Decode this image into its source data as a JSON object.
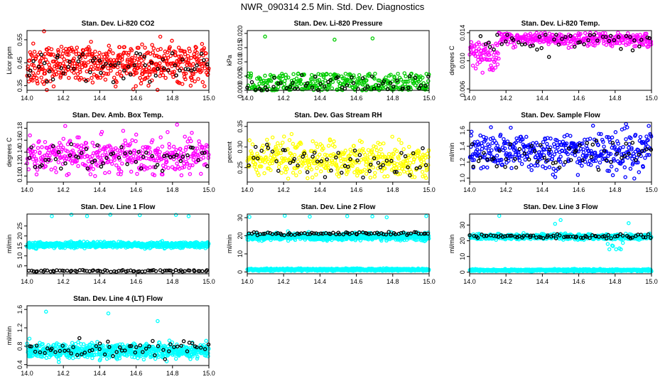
{
  "page_title": "NWR_090314  2.5 Min. Std. Dev. Diagnostics",
  "colors": {
    "ink": "#000000",
    "red": "#ff0000",
    "green": "#00cc00",
    "magenta": "#ff00ff",
    "yellow": "#ffff00",
    "blue": "#0000ff",
    "cyan": "#00ffff"
  },
  "chart_data": [
    {
      "type": "scatter",
      "title": "Stan. Dev. Li-820 CO2",
      "ylabel": "Licor ppm",
      "xlim": [
        14.0,
        15.0
      ],
      "ylim": [
        0.33,
        0.59
      ],
      "xticks": [
        "14.0",
        "14.2",
        "14.4",
        "14.6",
        "14.8",
        "15.0"
      ],
      "yticks": [
        "0.35",
        "0.45",
        "0.55"
      ],
      "ytick_values": [
        0.35,
        0.45,
        0.55
      ],
      "series": [
        {
          "name": "all",
          "color": "#ff0000",
          "bands": [
            {
              "n": 480,
              "center": 0.44,
              "spread": 0.045,
              "ymin": 0.33,
              "ymax": 0.52
            },
            {
              "n": 25,
              "center": 0.5,
              "spread": 0.03,
              "ymin": 0.47,
              "ymax": 0.59
            }
          ]
        },
        {
          "name": "selected",
          "color": "#000000",
          "bands": [
            {
              "n": 60,
              "center": 0.43,
              "spread": 0.04,
              "ymin": 0.36,
              "ymax": 0.5
            }
          ]
        }
      ]
    },
    {
      "type": "scatter",
      "title": "Stan. Dev. Li-820 Pressure",
      "ylabel": "kPa",
      "xlim": [
        14.0,
        15.0
      ],
      "ylim": [
        0.0,
        0.021
      ],
      "xticks": [
        "14.0",
        "14.2",
        "14.4",
        "14.6",
        "14.8",
        "15.0"
      ],
      "yticks": [
        "0.000",
        "0.005",
        "0.010",
        "0.015",
        "0.020"
      ],
      "ytick_values": [
        0.0,
        0.005,
        0.01,
        0.015,
        0.02
      ],
      "series": [
        {
          "name": "all",
          "color": "#00cc00",
          "bands": [
            {
              "n": 340,
              "center": 0.0025,
              "spread": 0.0025,
              "ymin": 0.0,
              "ymax": 0.006
            },
            {
              "n": 3,
              "center": 0.0185,
              "spread": 0.001,
              "ymin": 0.0175,
              "ymax": 0.0195
            }
          ]
        },
        {
          "name": "selected",
          "color": "#000000",
          "bands": [
            {
              "n": 55,
              "center": 0.0015,
              "spread": 0.0025,
              "ymin": 0.0,
              "ymax": 0.006
            }
          ]
        }
      ]
    },
    {
      "type": "scatter",
      "title": "Stan. Dev. Li-820 Temp.",
      "ylabel": "degrees C",
      "xlim": [
        14.0,
        15.0
      ],
      "ylim": [
        0.0058,
        0.0143
      ],
      "xticks": [
        "14.0",
        "14.2",
        "14.4",
        "14.6",
        "14.8",
        "15.0"
      ],
      "yticks": [
        "0.006",
        "0.010",
        "0.014"
      ],
      "ytick_values": [
        0.006,
        0.01,
        0.014
      ],
      "series": [
        {
          "name": "all",
          "color": "#ff00ff",
          "bands": [
            {
              "n": 70,
              "center": 0.0105,
              "spread": 0.0012,
              "ymin": 0.0075,
              "ymax": 0.0128,
              "xmin": 14.0,
              "xmax": 14.16
            },
            {
              "n": 330,
              "center": 0.0131,
              "spread": 0.0005,
              "ymin": 0.0118,
              "ymax": 0.014,
              "xmin": 14.16,
              "xmax": 15.0
            }
          ]
        },
        {
          "name": "selected",
          "color": "#000000",
          "bands": [
            {
              "n": 50,
              "center": 0.0128,
              "spread": 0.0006,
              "ymin": 0.0095,
              "ymax": 0.0138,
              "xmin": 14.05,
              "xmax": 15.0
            }
          ]
        }
      ]
    },
    {
      "type": "scatter",
      "title": "Stan. Dev. Amb. Box Temp.",
      "ylabel": "degrees C",
      "xlim": [
        14.0,
        15.0
      ],
      "ylim": [
        0.09,
        0.19
      ],
      "xticks": [
        "14.0",
        "14.2",
        "14.4",
        "14.6",
        "14.8",
        "15.0"
      ],
      "yticks": [
        "0.10",
        "0.12",
        "0.14",
        "0.16",
        "0.18"
      ],
      "ytick_values": [
        0.1,
        0.12,
        0.14,
        0.16,
        0.18
      ],
      "series": [
        {
          "name": "all",
          "color": "#ff00ff",
          "bands": [
            {
              "n": 400,
              "center": 0.135,
              "spread": 0.015,
              "ymin": 0.1,
              "ymax": 0.19
            }
          ]
        },
        {
          "name": "selected",
          "color": "#000000",
          "bands": [
            {
              "n": 55,
              "center": 0.13,
              "spread": 0.012,
              "ymin": 0.105,
              "ymax": 0.165
            }
          ]
        }
      ]
    },
    {
      "type": "scatter",
      "title": "Stan. Dev. Gas Stream RH",
      "ylabel": "percent",
      "xlim": [
        14.0,
        15.0
      ],
      "ylim": [
        0.215,
        0.36
      ],
      "xticks": [
        "14.0",
        "14.2",
        "14.4",
        "14.6",
        "14.8",
        "15.0"
      ],
      "yticks": [
        "0.25",
        "0.30",
        "0.35"
      ],
      "ytick_values": [
        0.25,
        0.3,
        0.35
      ],
      "series": [
        {
          "name": "all",
          "color": "#ffff00",
          "bands": [
            {
              "n": 420,
              "center": 0.27,
              "spread": 0.022,
              "ymin": 0.22,
              "ymax": 0.36
            }
          ]
        },
        {
          "name": "selected",
          "color": "#000000",
          "bands": [
            {
              "n": 55,
              "center": 0.265,
              "spread": 0.018,
              "ymin": 0.225,
              "ymax": 0.31
            }
          ]
        }
      ]
    },
    {
      "type": "scatter",
      "title": "Stan. Dev. Sample Flow",
      "ylabel": "ml/min",
      "xlim": [
        14.0,
        15.0
      ],
      "ylim": [
        0.95,
        1.7
      ],
      "xticks": [
        "14.0",
        "14.2",
        "14.4",
        "14.6",
        "14.8",
        "15.0"
      ],
      "yticks": [
        "1.0",
        "1.2",
        "1.4",
        "1.6"
      ],
      "ytick_values": [
        1.0,
        1.2,
        1.4,
        1.6
      ],
      "series": [
        {
          "name": "all",
          "color": "#0000ff",
          "bands": [
            {
              "n": 420,
              "center": 1.33,
              "spread": 0.12,
              "ymin": 0.96,
              "ymax": 1.68
            }
          ]
        },
        {
          "name": "selected",
          "color": "#000000",
          "bands": [
            {
              "n": 55,
              "center": 1.3,
              "spread": 0.1,
              "ymin": 1.1,
              "ymax": 1.5
            }
          ]
        }
      ]
    },
    {
      "type": "scatter",
      "title": "Stan. Dev. Line 1 Flow",
      "ylabel": "ml/min",
      "xlim": [
        14.0,
        15.0
      ],
      "ylim": [
        1.0,
        31.0
      ],
      "xticks": [
        "14.0",
        "14.2",
        "14.4",
        "14.6",
        "14.8",
        "15.0"
      ],
      "yticks": [
        "5",
        "10",
        "15",
        "20",
        "25"
      ],
      "ytick_values": [
        5,
        10,
        15,
        20,
        25
      ],
      "series": [
        {
          "name": "all",
          "color": "#00ffff",
          "bands": [
            {
              "n": 700,
              "center": 15.5,
              "spread": 0.7,
              "ymin": 13.5,
              "ymax": 17.5
            },
            {
              "n": 7,
              "center": 30.0,
              "spread": 0.5,
              "ymin": 29.0,
              "ymax": 31.0
            }
          ]
        },
        {
          "name": "selected",
          "color": "#000000",
          "bands": [
            {
              "n": 75,
              "center": 2.5,
              "spread": 0.25,
              "ymin": 2.0,
              "ymax": 3.2
            }
          ]
        }
      ]
    },
    {
      "type": "scatter",
      "title": "Stan. Dev. Line 2 Flow",
      "ylabel": "ml/min",
      "xlim": [
        14.0,
        15.0
      ],
      "ylim": [
        -1.0,
        32.0
      ],
      "xticks": [
        "14.0",
        "14.2",
        "14.4",
        "14.6",
        "14.8",
        "15.0"
      ],
      "yticks": [
        "0",
        "10",
        "20",
        "30"
      ],
      "ytick_values": [
        0,
        10,
        20,
        30
      ],
      "series": [
        {
          "name": "all",
          "color": "#00ffff",
          "bands": [
            {
              "n": 700,
              "center": 19.5,
              "spread": 0.9,
              "ymin": 17.0,
              "ymax": 22.5
            },
            {
              "n": 700,
              "center": 1.3,
              "spread": 0.3,
              "ymin": 0.5,
              "ymax": 2.2
            },
            {
              "n": 7,
              "center": 30.5,
              "spread": 0.8,
              "ymin": 29.0,
              "ymax": 31.5
            }
          ]
        },
        {
          "name": "selected",
          "color": "#000000",
          "bands": [
            {
              "n": 75,
              "center": 21.2,
              "spread": 0.4,
              "ymin": 20.0,
              "ymax": 22.8
            }
          ]
        }
      ]
    },
    {
      "type": "scatter",
      "title": "Stan. Dev. Line 3 Flow",
      "ylabel": "ml/min",
      "xlim": [
        14.0,
        15.0
      ],
      "ylim": [
        -1.0,
        37.0
      ],
      "xticks": [
        "14.0",
        "14.2",
        "14.4",
        "14.6",
        "14.8",
        "15.0"
      ],
      "yticks": [
        "0",
        "10",
        "20",
        "30"
      ],
      "ytick_values": [
        0,
        10,
        20,
        30
      ],
      "series": [
        {
          "name": "all",
          "color": "#00ffff",
          "bands": [
            {
              "n": 700,
              "center": 22.5,
              "spread": 0.8,
              "ymin": 20.5,
              "ymax": 25.0
            },
            {
              "n": 700,
              "center": 1.3,
              "spread": 0.3,
              "ymin": 0.5,
              "ymax": 2.2
            },
            {
              "n": 8,
              "center": 16.0,
              "spread": 1.5,
              "ymin": 14.0,
              "ymax": 19.0,
              "xmin": 14.75,
              "xmax": 14.85
            },
            {
              "n": 4,
              "center": 33.0,
              "spread": 2.0,
              "ymin": 30.0,
              "ymax": 36.0
            }
          ]
        },
        {
          "name": "selected",
          "color": "#000000",
          "bands": [
            {
              "n": 75,
              "center": 22.8,
              "spread": 0.6,
              "ymin": 21.0,
              "ymax": 25.0
            }
          ]
        }
      ]
    },
    {
      "type": "scatter",
      "title": "Stan. Dev. Line 4 (LT) Flow",
      "ylabel": "ml/min",
      "xlim": [
        14.0,
        15.0
      ],
      "ylim": [
        0.38,
        1.68
      ],
      "xticks": [
        "14.0",
        "14.2",
        "14.4",
        "14.6",
        "14.8",
        "15.0"
      ],
      "yticks": [
        "0.4",
        "0.8",
        "1.2",
        "1.6"
      ],
      "ytick_values": [
        0.4,
        0.8,
        1.2,
        1.6
      ],
      "series": [
        {
          "name": "all",
          "color": "#00ffff",
          "bands": [
            {
              "n": 650,
              "center": 0.7,
              "spread": 0.08,
              "ymin": 0.45,
              "ymax": 1.0
            },
            {
              "n": 3,
              "center": 1.4,
              "spread": 0.15,
              "ymin": 1.2,
              "ymax": 1.6
            }
          ]
        },
        {
          "name": "selected",
          "color": "#000000",
          "bands": [
            {
              "n": 60,
              "center": 0.72,
              "spread": 0.1,
              "ymin": 0.5,
              "ymax": 1.0
            }
          ]
        }
      ]
    }
  ]
}
